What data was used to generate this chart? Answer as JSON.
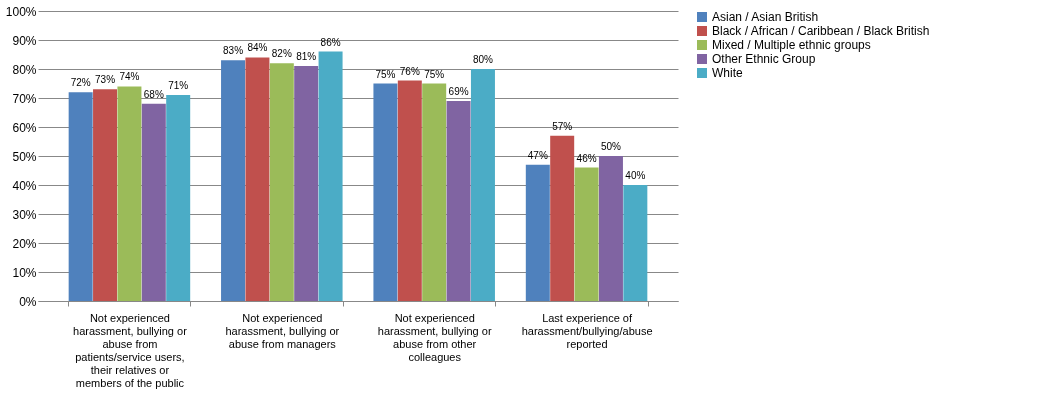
{
  "chart_data": {
    "type": "bar",
    "categories": [
      "Not experienced harassment, bullying or abuse from patients/service users, their relatives or members of the public",
      "Not experienced harassment, bullying or abuse from managers",
      "Not experienced harassment, bullying or abuse from other colleagues",
      "Last experience of harassment/bullying/abuse reported"
    ],
    "series": [
      {
        "name": "Asian / Asian British",
        "color": "#4f81bd",
        "values": [
          72,
          83,
          75,
          47
        ],
        "value_labels": [
          "72%",
          "83%",
          "75%",
          "47%"
        ]
      },
      {
        "name": "Black / African / Caribbean / Black British",
        "color": "#c0504d",
        "values": [
          73,
          84,
          76,
          57
        ],
        "value_labels": [
          "73%",
          "84%",
          "76%",
          "57%"
        ]
      },
      {
        "name": "Mixed / Multiple ethnic groups",
        "color": "#9bbb59",
        "values": [
          74,
          82,
          75,
          46
        ],
        "value_labels": [
          "74%",
          "82%",
          "75%",
          "46%"
        ]
      },
      {
        "name": "Other Ethnic Group",
        "color": "#8064a2",
        "values": [
          68,
          81,
          69,
          50
        ],
        "value_labels": [
          "68%",
          "81%",
          "69%",
          "50%"
        ]
      },
      {
        "name": "White",
        "color": "#4bacc6",
        "values": [
          71,
          86,
          80,
          40
        ],
        "value_labels": [
          "71%",
          "86%",
          "80%",
          "40%"
        ]
      }
    ],
    "ylim": [
      0,
      100
    ],
    "yticks": [
      {
        "value": 0,
        "label": "0%"
      },
      {
        "value": 10,
        "label": "10%"
      },
      {
        "value": 20,
        "label": "20%"
      },
      {
        "value": 30,
        "label": "30%"
      },
      {
        "value": 40,
        "label": "40%"
      },
      {
        "value": 50,
        "label": "50%"
      },
      {
        "value": 60,
        "label": "60%"
      },
      {
        "value": 70,
        "label": "70%"
      },
      {
        "value": 80,
        "label": "80%"
      },
      {
        "value": 90,
        "label": "90%"
      },
      {
        "value": 100,
        "label": "100%"
      }
    ],
    "grid": "y",
    "legend": "right"
  }
}
